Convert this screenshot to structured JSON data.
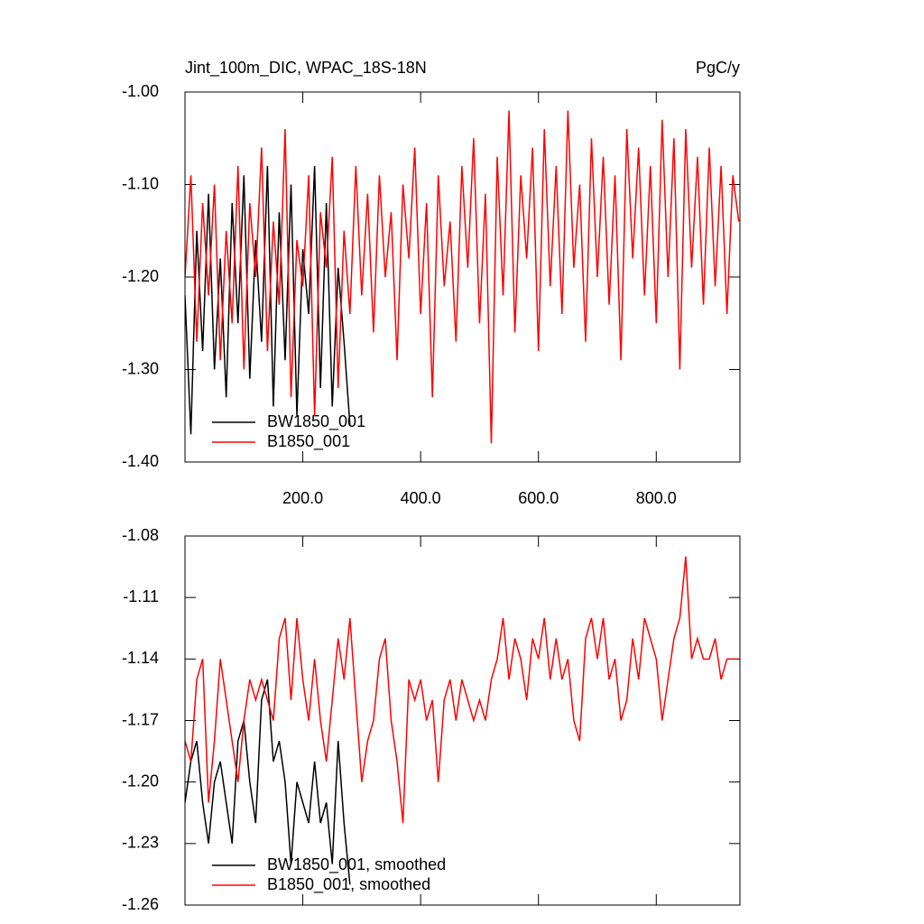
{
  "chart_data": [
    {
      "type": "line",
      "title": "Jint_100m_DIC, WPAC_18S-18N",
      "y_units": "PgC/y",
      "legend": "lower left",
      "xlim": [
        0,
        942
      ],
      "xticks": [
        {
          "value": 200,
          "label": "200.0"
        },
        {
          "value": 400,
          "label": "400.0"
        },
        {
          "value": 600,
          "label": "600.0"
        },
        {
          "value": 800,
          "label": "800.0"
        }
      ],
      "ylim": [
        -1.4,
        -1.0
      ],
      "yticks": [
        {
          "value": -1.0,
          "label": "-1.00"
        },
        {
          "value": -1.1,
          "label": "-1.10"
        },
        {
          "value": -1.2,
          "label": "-1.20"
        },
        {
          "value": -1.3,
          "label": "-1.30"
        },
        {
          "value": -1.4,
          "label": "-1.40"
        }
      ],
      "series": [
        {
          "name": "BW1850_001",
          "color": "#000000",
          "x": [
            0,
            10,
            20,
            30,
            40,
            50,
            60,
            70,
            80,
            90,
            100,
            110,
            120,
            130,
            140,
            150,
            160,
            170,
            180,
            190,
            200,
            210,
            220,
            230,
            240,
            250,
            260,
            270,
            280
          ],
          "values": [
            -1.22,
            -1.37,
            -1.15,
            -1.28,
            -1.11,
            -1.3,
            -1.18,
            -1.33,
            -1.12,
            -1.25,
            -1.09,
            -1.31,
            -1.16,
            -1.27,
            -1.08,
            -1.34,
            -1.13,
            -1.29,
            -1.1,
            -1.35,
            -1.17,
            -1.24,
            -1.08,
            -1.32,
            -1.12,
            -1.34,
            -1.19,
            -1.27,
            -1.36
          ]
        },
        {
          "name": "B1850_001",
          "color": "#ff0000",
          "x": [
            0,
            10,
            20,
            30,
            40,
            50,
            60,
            70,
            80,
            90,
            100,
            110,
            120,
            130,
            140,
            150,
            160,
            170,
            180,
            190,
            200,
            210,
            220,
            230,
            240,
            250,
            260,
            270,
            280,
            290,
            300,
            310,
            320,
            330,
            340,
            350,
            360,
            370,
            380,
            390,
            400,
            410,
            420,
            430,
            440,
            450,
            460,
            470,
            480,
            490,
            500,
            510,
            520,
            530,
            540,
            550,
            560,
            570,
            580,
            590,
            600,
            610,
            620,
            630,
            640,
            650,
            660,
            670,
            680,
            690,
            700,
            710,
            720,
            730,
            740,
            750,
            760,
            770,
            780,
            790,
            800,
            810,
            820,
            830,
            840,
            850,
            860,
            870,
            880,
            890,
            900,
            910,
            920,
            930,
            940
          ],
          "values": [
            -1.2,
            -1.09,
            -1.27,
            -1.12,
            -1.22,
            -1.1,
            -1.29,
            -1.15,
            -1.25,
            -1.08,
            -1.3,
            -1.12,
            -1.2,
            -1.06,
            -1.28,
            -1.14,
            -1.23,
            -1.04,
            -1.33,
            -1.16,
            -1.21,
            -1.09,
            -1.35,
            -1.13,
            -1.19,
            -1.07,
            -1.32,
            -1.15,
            -1.24,
            -1.08,
            -1.22,
            -1.11,
            -1.26,
            -1.09,
            -1.2,
            -1.13,
            -1.29,
            -1.1,
            -1.18,
            -1.06,
            -1.24,
            -1.12,
            -1.33,
            -1.09,
            -1.21,
            -1.14,
            -1.27,
            -1.08,
            -1.19,
            -1.05,
            -1.25,
            -1.11,
            -1.38,
            -1.07,
            -1.22,
            -1.02,
            -1.26,
            -1.09,
            -1.18,
            -1.06,
            -1.28,
            -1.04,
            -1.21,
            -1.08,
            -1.24,
            -1.02,
            -1.19,
            -1.1,
            -1.27,
            -1.05,
            -1.2,
            -1.07,
            -1.23,
            -1.09,
            -1.29,
            -1.04,
            -1.18,
            -1.06,
            -1.22,
            -1.08,
            -1.25,
            -1.03,
            -1.2,
            -1.05,
            -1.3,
            -1.04,
            -1.19,
            -1.07,
            -1.23,
            -1.06,
            -1.21,
            -1.08,
            -1.24,
            -1.09,
            -1.14
          ]
        }
      ]
    },
    {
      "type": "line",
      "legend": "lower left",
      "xlim": [
        0,
        942
      ],
      "xticks": [
        200,
        400,
        600,
        800
      ],
      "ylim": [
        -1.26,
        -1.08
      ],
      "yticks": [
        -1.08,
        -1.11,
        -1.14,
        -1.17,
        {
          "value": -1.2,
          "label": "-1.20"
        },
        -1.23,
        -1.26
      ],
      "series": [
        {
          "name": "BW1850_001, smoothed",
          "color": "#000000",
          "x": [
            0,
            10,
            20,
            30,
            40,
            50,
            60,
            70,
            80,
            90,
            100,
            110,
            120,
            130,
            140,
            150,
            160,
            170,
            180,
            190,
            200,
            210,
            220,
            230,
            240,
            250,
            260,
            270,
            280
          ],
          "values": [
            -1.21,
            -1.19,
            -1.18,
            -1.21,
            -1.23,
            -1.2,
            -1.19,
            -1.21,
            -1.23,
            -1.18,
            -1.17,
            -1.2,
            -1.22,
            -1.16,
            -1.15,
            -1.19,
            -1.18,
            -1.2,
            -1.24,
            -1.2,
            -1.21,
            -1.22,
            -1.19,
            -1.22,
            -1.21,
            -1.24,
            -1.18,
            -1.22,
            -1.25
          ]
        },
        {
          "name": "B1850_001, smoothed",
          "color": "#ff0000",
          "x": [
            0,
            10,
            20,
            30,
            40,
            50,
            60,
            70,
            80,
            90,
            100,
            110,
            120,
            130,
            140,
            150,
            160,
            170,
            180,
            190,
            200,
            210,
            220,
            230,
            240,
            250,
            260,
            270,
            280,
            290,
            300,
            310,
            320,
            330,
            340,
            350,
            360,
            370,
            380,
            390,
            400,
            410,
            420,
            430,
            440,
            450,
            460,
            470,
            480,
            490,
            500,
            510,
            520,
            530,
            540,
            550,
            560,
            570,
            580,
            590,
            600,
            610,
            620,
            630,
            640,
            650,
            660,
            670,
            680,
            690,
            700,
            710,
            720,
            730,
            740,
            750,
            760,
            770,
            780,
            790,
            800,
            810,
            820,
            830,
            840,
            850,
            860,
            870,
            880,
            890,
            900,
            910,
            920,
            930,
            940
          ],
          "values": [
            -1.18,
            -1.19,
            -1.15,
            -1.14,
            -1.21,
            -1.18,
            -1.14,
            -1.16,
            -1.18,
            -1.2,
            -1.17,
            -1.15,
            -1.16,
            -1.15,
            -1.16,
            -1.17,
            -1.13,
            -1.12,
            -1.16,
            -1.12,
            -1.15,
            -1.17,
            -1.14,
            -1.17,
            -1.19,
            -1.16,
            -1.13,
            -1.15,
            -1.12,
            -1.16,
            -1.2,
            -1.18,
            -1.17,
            -1.14,
            -1.13,
            -1.17,
            -1.19,
            -1.22,
            -1.15,
            -1.16,
            -1.15,
            -1.17,
            -1.16,
            -1.2,
            -1.16,
            -1.15,
            -1.17,
            -1.15,
            -1.16,
            -1.17,
            -1.16,
            -1.17,
            -1.15,
            -1.14,
            -1.12,
            -1.15,
            -1.13,
            -1.14,
            -1.16,
            -1.13,
            -1.14,
            -1.12,
            -1.15,
            -1.13,
            -1.15,
            -1.14,
            -1.17,
            -1.18,
            -1.13,
            -1.12,
            -1.14,
            -1.12,
            -1.15,
            -1.14,
            -1.17,
            -1.16,
            -1.13,
            -1.15,
            -1.12,
            -1.13,
            -1.14,
            -1.17,
            -1.15,
            -1.13,
            -1.12,
            -1.09,
            -1.14,
            -1.13,
            -1.14,
            -1.14,
            -1.13,
            -1.15,
            -1.14,
            -1.14,
            -1.14
          ]
        }
      ]
    }
  ]
}
